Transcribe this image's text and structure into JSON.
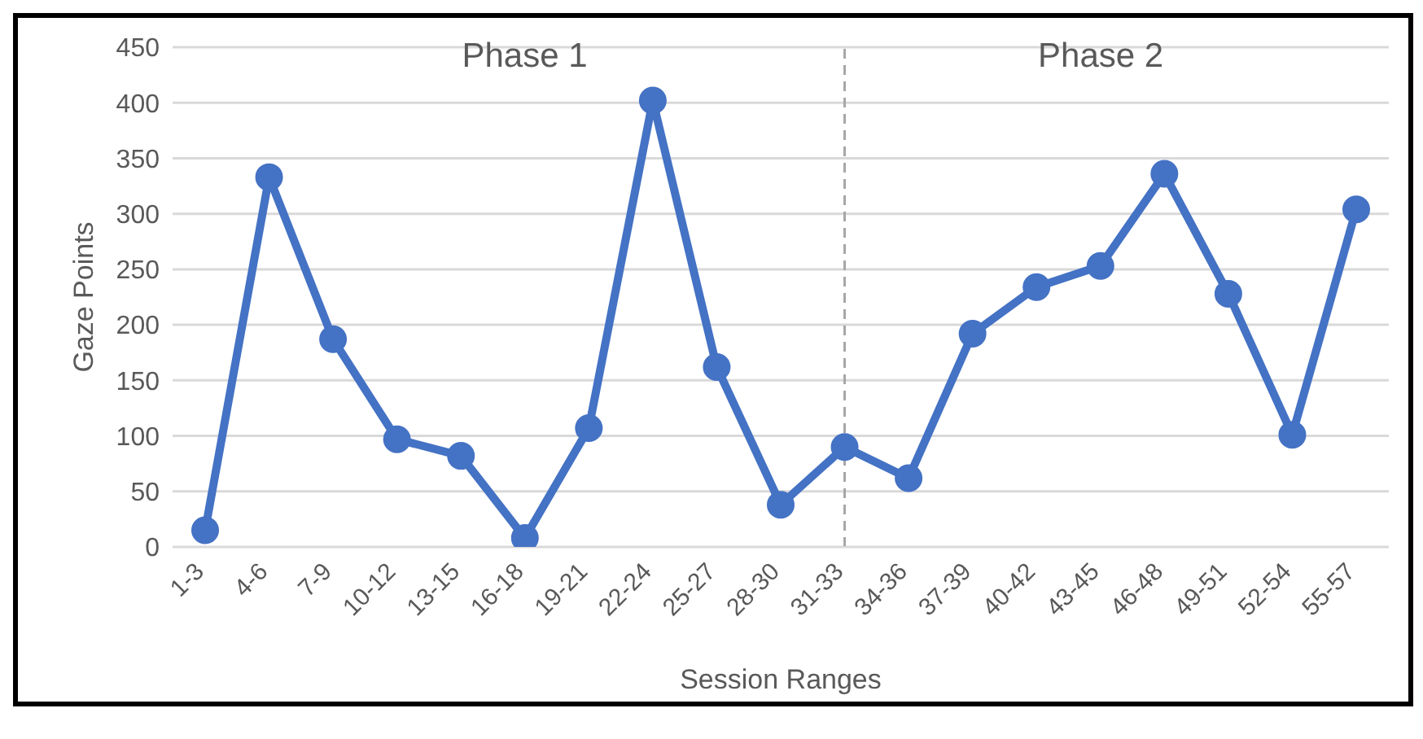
{
  "chart_data": {
    "type": "line",
    "xlabel": "Session Ranges",
    "ylabel": "Gaze Points",
    "categories": [
      "1-3",
      "4-6",
      "7-9",
      "10-12",
      "13-15",
      "16-18",
      "19-21",
      "22-24",
      "25-27",
      "28-30",
      "31-33",
      "34-36",
      "37-39",
      "40-42",
      "43-45",
      "46-48",
      "49-51",
      "52-54",
      "55-57"
    ],
    "series": [
      {
        "color": "#4472c4",
        "values": [
          15,
          333,
          187,
          97,
          82,
          8,
          107,
          402,
          162,
          38,
          90,
          62,
          192,
          234,
          253,
          336,
          228,
          101,
          304
        ]
      }
    ],
    "ylim": [
      0,
      450
    ],
    "yticks": [
      0,
      50,
      100,
      150,
      200,
      250,
      300,
      350,
      400,
      450
    ],
    "grid": "y",
    "marker": "circle",
    "line_style": "solid",
    "ref_lines": [
      {
        "axis": "x",
        "value": "31-33",
        "color": "#a6a6a6",
        "line_style": "dashed"
      }
    ],
    "annotations": [
      "Phase 1",
      "Phase 2"
    ]
  }
}
